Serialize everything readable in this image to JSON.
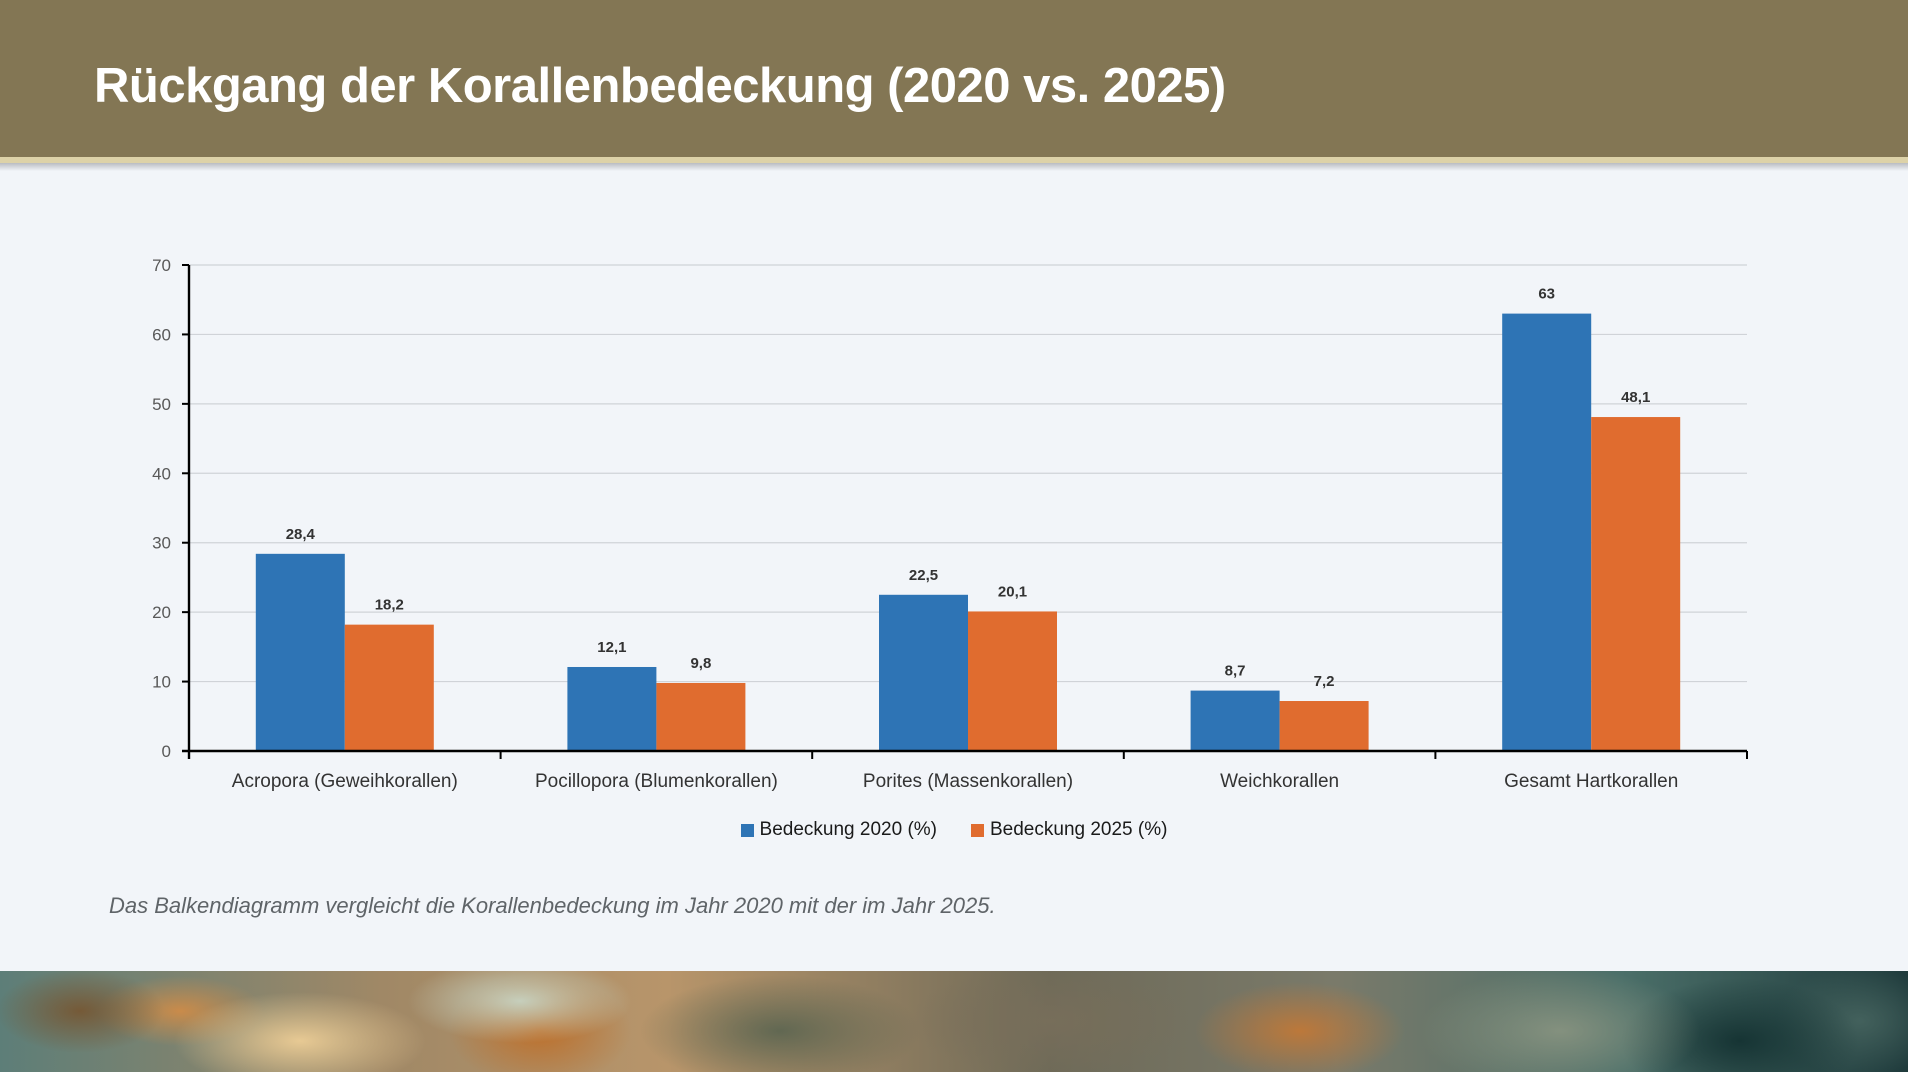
{
  "header": {
    "title": "Rückgang der Korallenbedeckung (2020 vs. 2025)",
    "background_color": "#837654",
    "stripe_color": "#ddd2a8"
  },
  "chart_data": {
    "type": "bar",
    "title": "Rückgang der Korallenbedeckung (2020 vs. 2025)",
    "xlabel": "",
    "ylabel": "",
    "categories": [
      "Acropora (Geweihkorallen)",
      "Pocillopora (Blumenkorallen)",
      "Porites (Massenkorallen)",
      "Weichkorallen",
      "Gesamt Hartkorallen"
    ],
    "series": [
      {
        "name": "Bedeckung 2020 (%)",
        "color": "#2e74b5",
        "values": [
          28.4,
          12.1,
          22.5,
          8.7,
          63
        ],
        "labels": [
          "28,4",
          "12,1",
          "22,5",
          "8,7",
          "63"
        ]
      },
      {
        "name": "Bedeckung 2025 (%)",
        "color": "#e06c2f",
        "values": [
          18.2,
          9.8,
          20.1,
          7.2,
          48.1
        ],
        "labels": [
          "18,2",
          "9,8",
          "20,1",
          "7,2",
          "48,1"
        ]
      }
    ],
    "ylim": [
      0,
      70
    ],
    "yticks": [
      0,
      10,
      20,
      30,
      40,
      50,
      60,
      70
    ],
    "grid": true,
    "legend_position": "bottom"
  },
  "legend": {
    "items": [
      {
        "label": "Bedeckung 2020 (%)",
        "color": "#2e74b5"
      },
      {
        "label": "Bedeckung 2025 (%)",
        "color": "#e06c2f"
      }
    ]
  },
  "caption": "Das Balkendiagramm vergleicht die Korallenbedeckung im Jahr 2020 mit der im Jahr 2025."
}
